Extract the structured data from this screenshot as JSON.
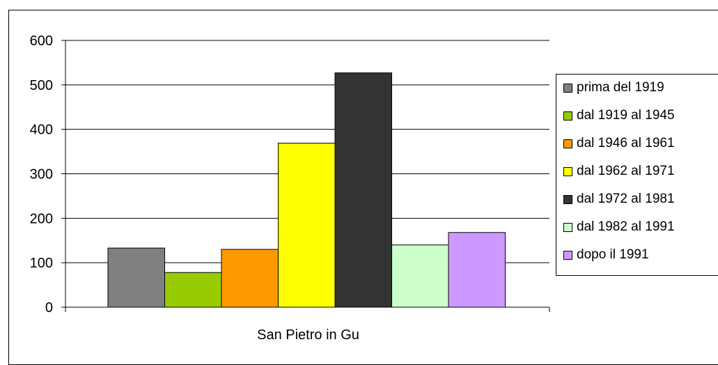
{
  "chart_data": {
    "type": "bar",
    "categories": [
      "San Pietro in Gu"
    ],
    "series": [
      {
        "name": "prima del 1919",
        "values": [
          133
        ],
        "color": "#808080"
      },
      {
        "name": "dal 1919 al 1945",
        "values": [
          78
        ],
        "color": "#99cc00"
      },
      {
        "name": "dal 1946 al 1961",
        "values": [
          130
        ],
        "color": "#ff9900"
      },
      {
        "name": "dal 1962 al 1971",
        "values": [
          369
        ],
        "color": "#ffff00"
      },
      {
        "name": "dal 1972 al 1981",
        "values": [
          527
        ],
        "color": "#333333"
      },
      {
        "name": "dal 1982 al 1991",
        "values": [
          140
        ],
        "color": "#ccffcc"
      },
      {
        "name": "dopo il 1991",
        "values": [
          168
        ],
        "color": "#cc99ff"
      }
    ],
    "yticks": [
      "0",
      "100",
      "200",
      "300",
      "400",
      "500",
      "600"
    ],
    "ylim": [
      0,
      600
    ],
    "grid": true,
    "legend_position": "right",
    "title": "",
    "xlabel": "",
    "ylabel": ""
  }
}
